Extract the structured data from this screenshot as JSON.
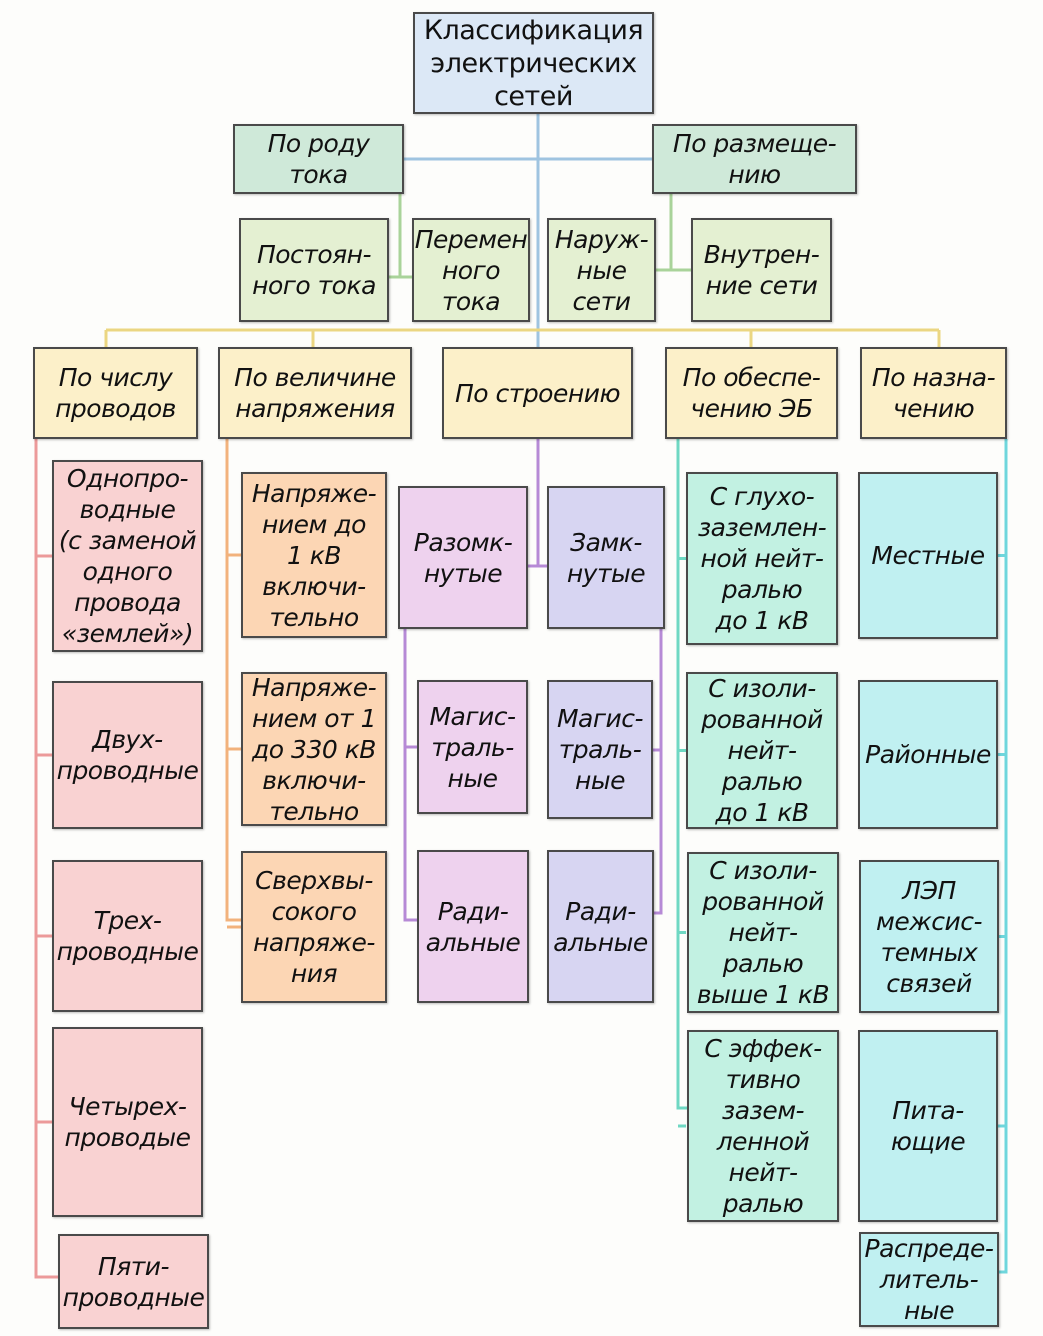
{
  "title": "Классификация\nэлектрических\nсетей",
  "colors": {
    "root": "#dce8f6",
    "level1": "#cfe9d9",
    "level2": "#e4f0d2",
    "criteria": "#fcf0c9",
    "wires": "#f9d2d2",
    "voltage": "#fcd6b4",
    "open": "#eed2ee",
    "closed": "#d7d5f2",
    "safety": "#c2f1e2",
    "purpose": "#c0f0f1",
    "line_blue": "#9fc4e0",
    "line_green": "#a9d39a",
    "line_yellow": "#ebd682",
    "line_red": "#ec9a9a",
    "line_orange": "#f2b27c",
    "line_purple": "#b68ad6",
    "line_teal": "#6fd8c3",
    "line_cyan": "#6fd6dc"
  },
  "level1": [
    {
      "label": "По роду\nтока",
      "children": [
        "Постоян-\nного тока",
        "Перемен\nного\nтока"
      ]
    },
    {
      "label": "По размеще-\nнию",
      "children": [
        "Наруж-\nные\nсети",
        "Внутрен-\nние сети"
      ]
    }
  ],
  "criteria": [
    {
      "label": "По числу\nпроводов",
      "items": [
        "Однопро-\nводные\n(с заменой\nодного\nпровода\n«землей»)",
        "Двух-\nпроводные",
        "Трех-\nпроводные",
        "Четырех-\nпроводые",
        "Пяти-\nпроводные"
      ]
    },
    {
      "label": "По величине\nнапряжения",
      "items": [
        "Напряже-\nнием до\n1 кВ\nвключи-\nтельно",
        "Напряже-\nнием от 1\nдо 330 кВ\nвключи-\nтельно",
        "Сверхвы-\nсокого\nнапряже-\nния"
      ]
    },
    {
      "label": "По строению",
      "open": [
        "Разомк-\nнутые",
        "Магис-\nтраль-\nные",
        "Ради-\nальные"
      ],
      "closed": [
        "Замк-\nнутые",
        "Магис-\nтраль-\nные",
        "Ради-\nальные"
      ]
    },
    {
      "label": "По обеспе-\nчению ЭБ",
      "items": [
        "С глухо-\nзаземлен-\nной нейт-\nралью\nдо 1 кВ",
        "С изоли-\nрованной\nнейт-\nралью\nдо 1 кВ",
        "С изоли-\nрованной\nнейт-\nралью\nвыше 1 кВ",
        "С эффек-\nтивно\nзазем-\nленной\nнейт-\nралью"
      ]
    },
    {
      "label": "По назна-\nчению",
      "items": [
        "Местные",
        "Районные",
        "ЛЭП\nмежсис-\nтемных\nсвязей",
        "Пита-\nющие",
        "Распреде-\nлитель-\nные"
      ]
    }
  ]
}
